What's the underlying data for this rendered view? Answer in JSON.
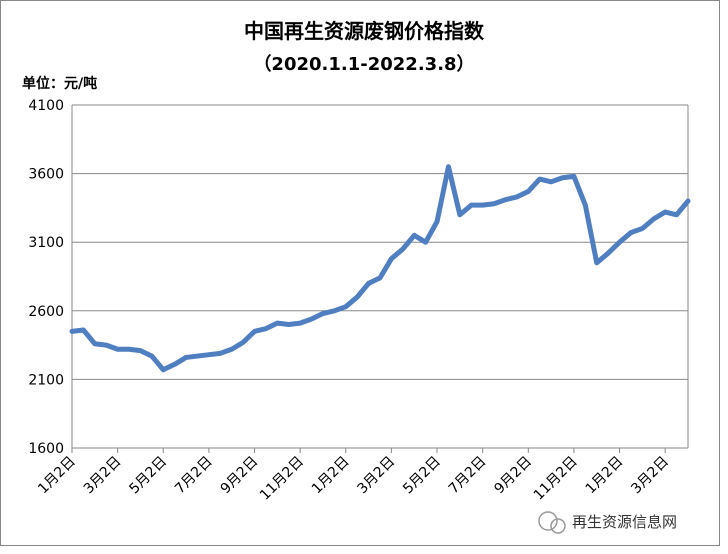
{
  "chart_data": {
    "type": "line",
    "title": "中国再生资源废钢价格指数",
    "subtitle": "（2020.1.1-2022.3.8）",
    "y_label": "单位：元/吨",
    "watermark": "再生资源信息网",
    "categories": [
      "1月2日",
      null,
      null,
      null,
      "3月2日",
      null,
      null,
      null,
      "5月2日",
      null,
      null,
      null,
      "7月2日",
      null,
      null,
      null,
      "9月2日",
      null,
      null,
      null,
      "11月2日",
      null,
      null,
      null,
      "1月2日",
      null,
      null,
      null,
      "3月2日",
      null,
      null,
      null,
      "5月2日",
      null,
      null,
      null,
      "7月2日",
      null,
      null,
      null,
      "9月2日",
      null,
      null,
      null,
      "11月2日",
      null,
      null,
      null,
      "1月2日",
      null,
      null,
      null,
      "3月2日",
      null,
      null
    ],
    "values": [
      2450,
      2460,
      2360,
      2350,
      2320,
      2320,
      2310,
      2270,
      2170,
      2210,
      2260,
      2270,
      2280,
      2290,
      2320,
      2370,
      2450,
      2470,
      2510,
      2500,
      2510,
      2540,
      2580,
      2600,
      2630,
      2700,
      2800,
      2840,
      2980,
      3050,
      3150,
      3100,
      3250,
      3650,
      3300,
      3370,
      3370,
      3380,
      3410,
      3430,
      3470,
      3560,
      3540,
      3570,
      3580,
      3370,
      2950,
      3020,
      3100,
      3170,
      3200,
      3270,
      3320,
      3300,
      3400
    ],
    "color": "#4f7fc0",
    "ylim": [
      1600,
      4100
    ],
    "yticks": [
      1600,
      2100,
      2600,
      3100,
      3600,
      4100
    ],
    "grid": true
  }
}
